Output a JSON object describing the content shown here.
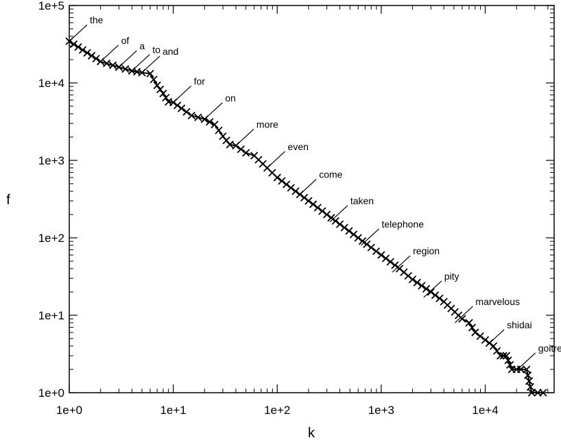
{
  "chart_data": {
    "type": "line",
    "title": "",
    "xlabel": "k",
    "ylabel": "f",
    "x_scale": "log",
    "y_scale": "log",
    "xlim": [
      1,
      46000
    ],
    "ylim": [
      1,
      100000
    ],
    "grid": false,
    "x_ticks": [
      {
        "value": 1,
        "label": "1e+0"
      },
      {
        "value": 10,
        "label": "1e+1"
      },
      {
        "value": 100,
        "label": "1e+2"
      },
      {
        "value": 1000,
        "label": "1e+3"
      },
      {
        "value": 10000,
        "label": "1e+4"
      }
    ],
    "y_ticks": [
      {
        "value": 1,
        "label": "1e+0"
      },
      {
        "value": 10,
        "label": "1e+1"
      },
      {
        "value": 100,
        "label": "1e+2"
      },
      {
        "value": 1000,
        "label": "1e+3"
      },
      {
        "value": 10000,
        "label": "1e+4"
      },
      {
        "value": 100000,
        "label": "1e+5"
      }
    ],
    "series": [
      {
        "marker": "x",
        "line": true,
        "x": [
          1,
          2,
          3,
          4,
          5,
          6,
          7,
          8,
          9,
          10,
          12,
          15,
          20,
          25,
          30,
          35,
          40,
          50,
          60,
          80,
          100,
          150,
          200,
          300,
          400,
          600,
          800,
          1000,
          1500,
          2000,
          3000,
          4000,
          6000,
          7000,
          8000,
          10000,
          12000,
          14000,
          15000,
          16000,
          18000,
          20000,
          22000,
          25000,
          28000,
          32000,
          36000
        ],
        "y": [
          34500,
          18900,
          16000,
          14300,
          13600,
          13200,
          9300,
          7300,
          5700,
          5600,
          4700,
          3800,
          3400,
          2900,
          2050,
          1600,
          1550,
          1250,
          1150,
          800,
          600,
          400,
          300,
          200,
          150,
          100,
          75,
          60,
          40,
          29,
          20,
          15,
          9,
          8,
          6,
          4.8,
          4,
          3,
          3,
          3,
          2,
          2,
          2,
          2,
          1,
          1,
          1
        ]
      }
    ],
    "annotations": [
      {
        "text": "the",
        "x": 1,
        "y": 34500
      },
      {
        "text": "of",
        "x": 2,
        "y": 18900
      },
      {
        "text": "a",
        "x": 3,
        "y": 16000
      },
      {
        "text": "to",
        "x": 4,
        "y": 14300
      },
      {
        "text": "and",
        "x": 5,
        "y": 13600
      },
      {
        "text": "for",
        "x": 10,
        "y": 5600
      },
      {
        "text": "on",
        "x": 20,
        "y": 3400
      },
      {
        "text": "more",
        "x": 40,
        "y": 1550
      },
      {
        "text": "even",
        "x": 80,
        "y": 800
      },
      {
        "text": "come",
        "x": 160,
        "y": 350
      },
      {
        "text": "taken",
        "x": 320,
        "y": 160
      },
      {
        "text": "telephone",
        "x": 640,
        "y": 80
      },
      {
        "text": "region",
        "x": 1280,
        "y": 36
      },
      {
        "text": "pity",
        "x": 2560,
        "y": 17
      },
      {
        "text": "marvelous",
        "x": 5120,
        "y": 8
      },
      {
        "text": "shidai",
        "x": 10240,
        "y": 4
      },
      {
        "text": "goitre",
        "x": 20480,
        "y": 2
      }
    ]
  }
}
